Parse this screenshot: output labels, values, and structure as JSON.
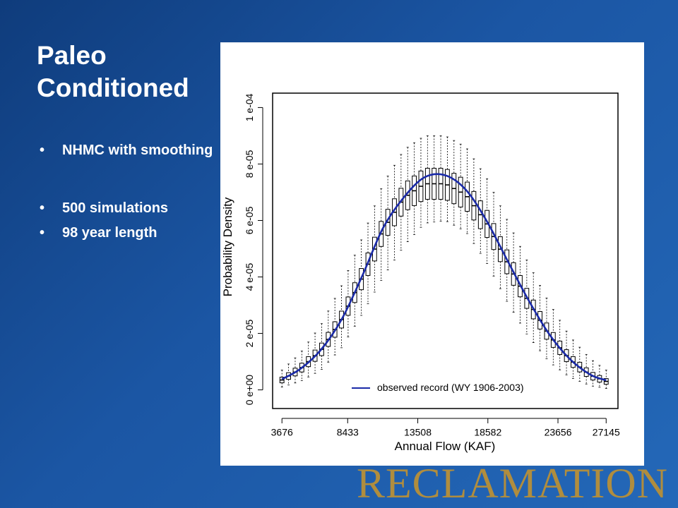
{
  "slide": {
    "title": "Paleo Conditioned",
    "bullets": [
      "NHMC with smoothing",
      "500 simulations",
      "98 year length"
    ],
    "brand": "RECLAMATION"
  },
  "colors": {
    "background": "#1b56a4",
    "observed_line": "#1a2aa8",
    "box": "#000000",
    "brand": "#b08d3e"
  },
  "chart_data": {
    "type": "boxplot",
    "xlabel": "Annual Flow (KAF)",
    "ylabel": "Probability Density",
    "x_ticks": [
      3676,
      8433,
      13508,
      18582,
      23656,
      27145
    ],
    "y_ticks": [
      "0 e+00",
      "2 e-05",
      "4 e-05",
      "6 e-05",
      "8 e-05",
      "1 e-04"
    ],
    "y_tick_values": [
      0,
      2e-05,
      4e-05,
      6e-05,
      8e-05,
      0.0001
    ],
    "xlim": [
      3000,
      28000
    ],
    "ylim": [
      -6.6e-06,
      0.0001051
    ],
    "n_boxes": 50,
    "legend": {
      "label": "observed record (WY 1906-2003)",
      "position": "bottom-right"
    },
    "observed_record": {
      "x": [
        3676,
        5000,
        6500,
        8000,
        9500,
        11000,
        12500,
        14000,
        15500,
        17000,
        18500,
        20000,
        21500,
        23000,
        24500,
        26000,
        27145
      ],
      "y": [
        3.8e-06,
        7.4e-06,
        1.42e-05,
        2.5e-05,
        4.05e-05,
        5.74e-05,
        6.82e-05,
        7.53e-05,
        7.6e-05,
        7.08e-05,
        5.98e-05,
        4.58e-05,
        3.2e-05,
        1.99e-05,
        1.1e-05,
        5.4e-06,
        3.4e-06
      ]
    },
    "boxes": {
      "x": [
        3676,
        5000,
        6500,
        8000,
        9500,
        11000,
        12500,
        14000,
        15500,
        17000,
        18500,
        20000,
        21500,
        23000,
        24500,
        26000,
        27145
      ],
      "median": [
        3.5e-06,
        7.4e-06,
        1.4e-05,
        2.5e-05,
        4e-05,
        5.68e-05,
        6.8e-05,
        7.3e-05,
        7.3e-05,
        6.9e-05,
        5.9e-05,
        4.5e-05,
        3.15e-05,
        1.95e-05,
        1.08e-05,
        5.2e-06,
        3e-06
      ],
      "q_width": [
        1e-06,
        1.5e-06,
        2.2e-06,
        3e-06,
        3.8e-06,
        4.5e-06,
        5e-06,
        5.5e-06,
        5.5e-06,
        5.2e-06,
        4.8e-06,
        4.2e-06,
        3.5e-06,
        2.8e-06,
        2e-06,
        1.4e-06,
        1e-06
      ],
      "whisker_low": [
        1e-06,
        3e-06,
        7e-06,
        1.5e-05,
        2.7e-05,
        4e-05,
        5.1e-05,
        5.9e-05,
        6e-05,
        5.6e-05,
        4.5e-05,
        3.1e-05,
        1.9e-05,
        1e-05,
        4.5e-06,
        1.5e-06,
        5e-07
      ],
      "whisker_high": [
        7e-06,
        1.3e-05,
        2.3e-05,
        3.7e-05,
        5.4e-05,
        7.3e-05,
        8.5e-05,
        9e-05,
        9e-05,
        8.6e-05,
        7.5e-05,
        6e-05,
        4.5e-05,
        3.1e-05,
        1.9e-05,
        1.1e-05,
        7e-06
      ]
    }
  }
}
